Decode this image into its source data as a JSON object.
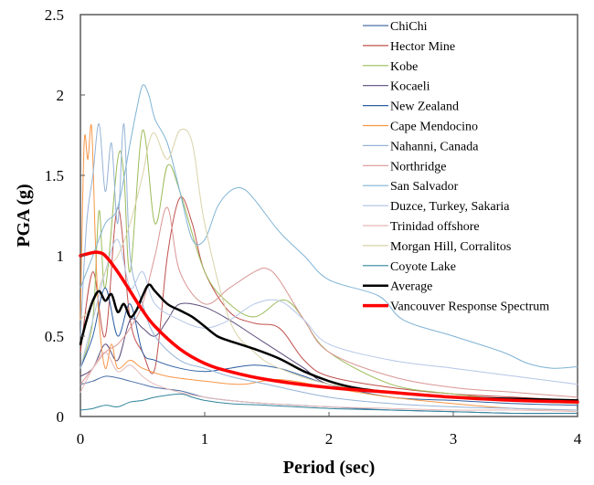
{
  "chart_data": {
    "type": "line",
    "title": "",
    "xlabel": "Period (sec)",
    "ylabel": "PGA (g)",
    "xlim": [
      0,
      4
    ],
    "ylim": [
      0,
      2.5
    ],
    "xticks": [
      0,
      1,
      2,
      3,
      4
    ],
    "xtick_labels": [
      "0",
      "1",
      "2",
      "3",
      "4"
    ],
    "yticks": [
      0,
      0.5,
      1,
      1.5,
      2,
      2.5
    ],
    "ytick_labels": [
      "0",
      "0.5",
      "1",
      "1.5",
      "2",
      "2.5"
    ],
    "grid": false,
    "legend_position": "top-right",
    "series": [
      {
        "name": "ChiChi",
        "color": "#4a6fa5",
        "width": 1,
        "x": [
          0,
          0.1,
          0.2,
          0.3,
          0.4,
          0.5,
          0.6,
          0.8,
          1.0,
          1.2,
          1.5,
          2.0,
          2.5,
          3.0,
          3.5,
          4.0
        ],
        "y": [
          0.2,
          0.22,
          0.25,
          0.24,
          0.22,
          0.2,
          0.18,
          0.16,
          0.12,
          0.1,
          0.08,
          0.06,
          0.04,
          0.03,
          0.02,
          0.02
        ]
      },
      {
        "name": "Hector Mine",
        "color": "#c0504d",
        "width": 1,
        "x": [
          0,
          0.1,
          0.2,
          0.3,
          0.4,
          0.5,
          0.6,
          0.7,
          0.8,
          0.9,
          1.0,
          1.2,
          1.4,
          1.6,
          1.8,
          2.0,
          2.5,
          3.0,
          3.5,
          4.0
        ],
        "y": [
          0.4,
          0.9,
          0.5,
          1.3,
          0.6,
          0.4,
          0.3,
          1.0,
          1.36,
          1.2,
          0.9,
          0.65,
          0.58,
          0.55,
          0.35,
          0.25,
          0.18,
          0.14,
          0.12,
          0.1
        ]
      },
      {
        "name": "Kobe",
        "color": "#9bbb59",
        "width": 1,
        "x": [
          0,
          0.1,
          0.15,
          0.2,
          0.3,
          0.35,
          0.4,
          0.5,
          0.6,
          0.7,
          0.8,
          1.0,
          1.2,
          1.4,
          1.6,
          1.7,
          1.8,
          2.0,
          2.5,
          3.0,
          3.5,
          4.0
        ],
        "y": [
          0.3,
          0.6,
          1.28,
          0.8,
          1.6,
          1.5,
          0.9,
          1.78,
          1.2,
          1.56,
          1.4,
          0.9,
          0.7,
          0.62,
          0.72,
          0.7,
          0.6,
          0.4,
          0.2,
          0.14,
          0.1,
          0.08
        ]
      },
      {
        "name": "Kocaeli",
        "color": "#5b4a7a",
        "width": 1,
        "x": [
          0,
          0.1,
          0.2,
          0.3,
          0.4,
          0.5,
          0.6,
          0.7,
          0.8,
          1.0,
          1.2,
          1.4,
          1.6,
          1.8,
          2.0,
          2.5,
          3.0,
          3.5,
          4.0
        ],
        "y": [
          0.25,
          0.3,
          0.45,
          0.35,
          0.6,
          0.55,
          0.5,
          0.6,
          0.7,
          0.68,
          0.6,
          0.5,
          0.4,
          0.3,
          0.2,
          0.15,
          0.12,
          0.1,
          0.1
        ]
      },
      {
        "name": "New Zealand",
        "color": "#2e5fa3",
        "width": 1,
        "x": [
          0,
          0.1,
          0.2,
          0.3,
          0.4,
          0.5,
          0.6,
          0.8,
          1.0,
          1.2,
          1.4,
          1.6,
          1.8,
          2.0,
          2.5,
          3.0,
          3.5,
          4.0
        ],
        "y": [
          0.3,
          0.5,
          0.8,
          0.5,
          0.7,
          0.4,
          0.35,
          0.3,
          0.28,
          0.3,
          0.32,
          0.3,
          0.25,
          0.2,
          0.12,
          0.1,
          0.08,
          0.07
        ]
      },
      {
        "name": "Cape Mendocino",
        "color": "#f79646",
        "width": 1,
        "x": [
          0,
          0.03,
          0.06,
          0.09,
          0.12,
          0.15,
          0.2,
          0.25,
          0.3,
          0.4,
          0.5,
          0.7,
          1.0,
          1.3,
          1.6,
          2.0,
          2.5,
          3.0,
          3.5,
          4.0
        ],
        "y": [
          0.6,
          1.7,
          1.6,
          1.8,
          1.1,
          0.6,
          0.3,
          0.45,
          0.3,
          0.35,
          0.3,
          0.25,
          0.22,
          0.2,
          0.23,
          0.18,
          0.12,
          0.08,
          0.05,
          0.04
        ]
      },
      {
        "name": "Nahanni, Canada",
        "color": "#95b3d7",
        "width": 1,
        "x": [
          0,
          0.05,
          0.1,
          0.15,
          0.2,
          0.25,
          0.3,
          0.35,
          0.4,
          0.5,
          0.6,
          0.8,
          1.0,
          1.2,
          1.5,
          2.0,
          2.5,
          3.0,
          3.5,
          4.0
        ],
        "y": [
          0.5,
          1.2,
          1.5,
          1.82,
          1.4,
          1.7,
          1.2,
          1.82,
          1.0,
          0.7,
          0.5,
          0.35,
          0.3,
          0.25,
          0.2,
          0.12,
          0.08,
          0.06,
          0.05,
          0.04
        ]
      },
      {
        "name": "Northridge",
        "color": "#d99694",
        "width": 1,
        "x": [
          0,
          0.1,
          0.2,
          0.3,
          0.4,
          0.5,
          0.6,
          0.7,
          0.8,
          1.0,
          1.2,
          1.4,
          1.5,
          1.6,
          1.8,
          2.0,
          2.5,
          3.0,
          3.5,
          4.0
        ],
        "y": [
          0.2,
          0.3,
          0.4,
          0.45,
          0.55,
          0.7,
          1.0,
          1.3,
          0.9,
          0.7,
          0.8,
          0.9,
          0.92,
          0.85,
          0.6,
          0.4,
          0.25,
          0.18,
          0.15,
          0.12
        ]
      },
      {
        "name": "San Salvador",
        "color": "#7fb3d5",
        "width": 1,
        "x": [
          0,
          0.1,
          0.2,
          0.3,
          0.4,
          0.45,
          0.5,
          0.55,
          0.6,
          0.7,
          0.8,
          0.9,
          1.0,
          1.1,
          1.2,
          1.3,
          1.4,
          1.6,
          1.8,
          2.0,
          2.4,
          2.6,
          3.0,
          3.4,
          3.6,
          3.8,
          4.0
        ],
        "y": [
          0.8,
          1.0,
          1.2,
          1.3,
          1.7,
          1.9,
          2.06,
          2.0,
          1.85,
          1.7,
          1.4,
          1.1,
          1.1,
          1.3,
          1.4,
          1.42,
          1.35,
          1.15,
          1.0,
          0.85,
          0.75,
          0.6,
          0.5,
          0.4,
          0.33,
          0.3,
          0.31
        ]
      },
      {
        "name": "Duzce, Turkey, Sakaria",
        "color": "#b4c6e7",
        "width": 1,
        "x": [
          0,
          0.1,
          0.2,
          0.3,
          0.4,
          0.5,
          0.6,
          0.8,
          1.0,
          1.2,
          1.4,
          1.6,
          1.8,
          2.0,
          2.5,
          3.0,
          3.5,
          4.0
        ],
        "y": [
          0.3,
          0.6,
          0.9,
          1.1,
          0.8,
          0.9,
          0.7,
          0.6,
          0.55,
          0.6,
          0.7,
          0.72,
          0.6,
          0.45,
          0.35,
          0.3,
          0.25,
          0.2
        ]
      },
      {
        "name": "Trinidad offshore",
        "color": "#e6b8b7",
        "width": 1,
        "x": [
          0,
          0.1,
          0.2,
          0.3,
          0.4,
          0.5,
          0.6,
          0.8,
          1.0,
          1.2,
          1.5,
          2.0,
          2.5,
          3.0,
          3.5,
          4.0
        ],
        "y": [
          0.15,
          0.3,
          0.4,
          0.28,
          0.32,
          0.25,
          0.2,
          0.15,
          0.12,
          0.1,
          0.08,
          0.06,
          0.05,
          0.04,
          0.04,
          0.03
        ]
      },
      {
        "name": "Morgan Hill, Corralitos",
        "color": "#d9d2a9",
        "width": 1,
        "x": [
          0,
          0.1,
          0.2,
          0.3,
          0.4,
          0.5,
          0.55,
          0.6,
          0.7,
          0.8,
          0.9,
          1.0,
          1.2,
          1.4,
          1.6,
          2.0,
          2.5,
          3.0,
          3.5,
          4.0
        ],
        "y": [
          0.6,
          0.7,
          0.9,
          1.0,
          1.2,
          1.5,
          1.7,
          1.76,
          1.6,
          1.78,
          1.7,
          1.2,
          0.6,
          0.4,
          0.3,
          0.2,
          0.15,
          0.12,
          0.1,
          0.08
        ]
      },
      {
        "name": "Coyote Lake",
        "color": "#31859c",
        "width": 1,
        "x": [
          0,
          0.1,
          0.2,
          0.3,
          0.4,
          0.5,
          0.6,
          0.8,
          0.9,
          1.0,
          1.2,
          1.5,
          2.0,
          2.5,
          3.0,
          3.5,
          4.0
        ],
        "y": [
          0.04,
          0.05,
          0.07,
          0.06,
          0.09,
          0.1,
          0.12,
          0.14,
          0.12,
          0.1,
          0.08,
          0.07,
          0.05,
          0.04,
          0.03,
          0.02,
          0.02
        ]
      },
      {
        "name": "Average",
        "color": "#000000",
        "width": 2.5,
        "x": [
          0,
          0.05,
          0.1,
          0.15,
          0.2,
          0.25,
          0.3,
          0.35,
          0.4,
          0.45,
          0.5,
          0.55,
          0.6,
          0.7,
          0.8,
          0.9,
          1.0,
          1.1,
          1.2,
          1.4,
          1.6,
          1.8,
          2.0,
          2.2,
          2.5,
          3.0,
          3.5,
          4.0
        ],
        "y": [
          0.45,
          0.6,
          0.72,
          0.78,
          0.72,
          0.76,
          0.65,
          0.7,
          0.62,
          0.66,
          0.75,
          0.82,
          0.78,
          0.7,
          0.66,
          0.62,
          0.56,
          0.5,
          0.47,
          0.42,
          0.36,
          0.28,
          0.22,
          0.18,
          0.15,
          0.12,
          0.11,
          0.1
        ]
      },
      {
        "name": "Vancouver Response Spectrum",
        "color": "#ff0000",
        "width": 3.5,
        "x": [
          0,
          0.1,
          0.15,
          0.2,
          0.3,
          0.4,
          0.5,
          0.6,
          0.8,
          1.0,
          1.2,
          1.5,
          2.0,
          2.5,
          3.0,
          3.5,
          4.0
        ],
        "y": [
          1.0,
          1.02,
          1.02,
          1.0,
          0.9,
          0.78,
          0.66,
          0.56,
          0.42,
          0.33,
          0.28,
          0.23,
          0.18,
          0.15,
          0.12,
          0.1,
          0.09
        ]
      }
    ]
  }
}
